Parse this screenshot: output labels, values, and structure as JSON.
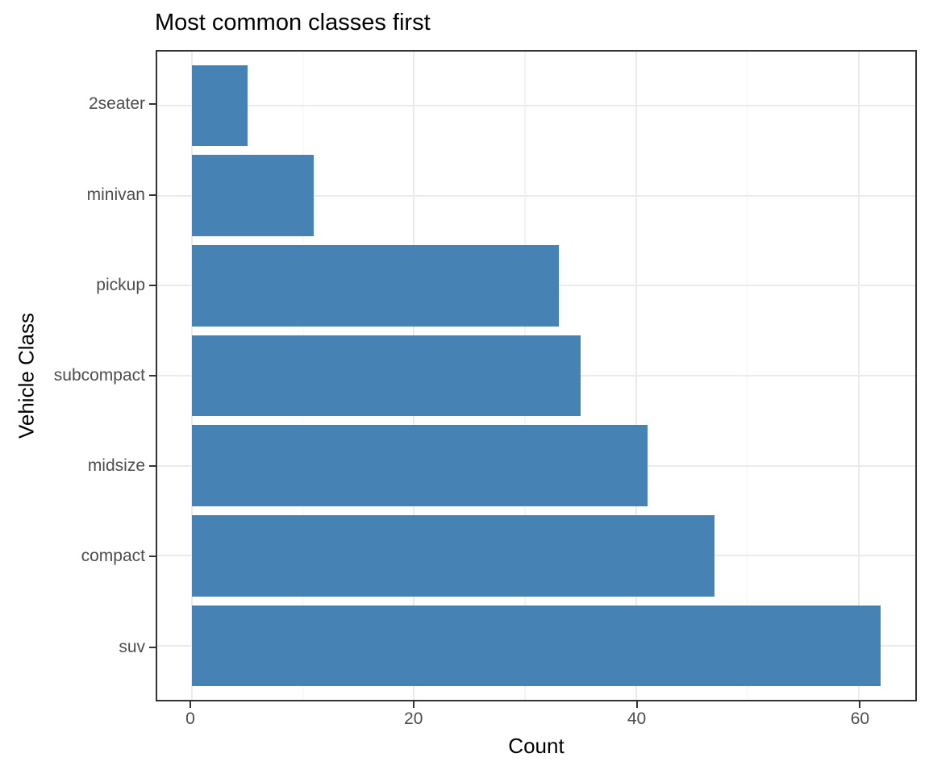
{
  "chart_data": {
    "type": "bar",
    "orientation": "horizontal",
    "title": "Most common classes first",
    "xlabel": "Count",
    "ylabel": "Vehicle Class",
    "categories": [
      "2seater",
      "minivan",
      "pickup",
      "subcompact",
      "midsize",
      "compact",
      "suv"
    ],
    "values": [
      5,
      11,
      33,
      35,
      41,
      47,
      62
    ],
    "xlim": [
      -3.1,
      65.1
    ],
    "x_major_ticks": [
      0,
      20,
      40,
      60
    ],
    "x_minor_gridlines": [
      10,
      30,
      50
    ],
    "grid": "on",
    "legend": "none",
    "colors": {
      "bar": "#4682B4",
      "panel_border": "#333333",
      "grid_major": "#EBEBEB",
      "grid_minor": "#F2F2F2",
      "tick_mark": "#333333",
      "axis_text": "#4D4D4D",
      "axis_title": "#000000",
      "title": "#000000",
      "background": "#FFFFFF"
    }
  }
}
